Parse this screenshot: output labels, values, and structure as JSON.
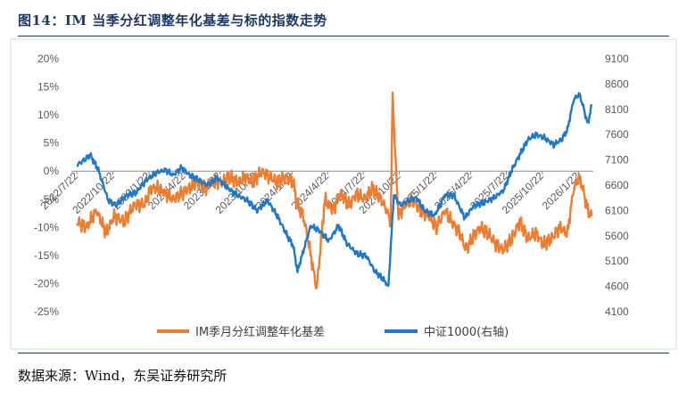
{
  "figure": {
    "title": "图14：IM 当季分红调整年化基差与标的指数走势",
    "source": "数据来源：Wind，东吴证券研究所"
  },
  "chart_data": {
    "type": "line",
    "x_ticks": [
      "2022/7/22",
      "2022/10/22",
      "2023/1/22",
      "2023/4/22",
      "2023/7/22",
      "2023/10/22",
      "2024/1/22",
      "2024/4/22",
      "2024/7/22",
      "2024/10/22",
      "2025/1/22",
      "2025/4/22",
      "2025/7/22",
      "2025/10/22",
      "2026/1/22"
    ],
    "x_tick_labels": [
      "2022/7/22",
      "2022/10/22",
      "2023/1/22",
      "2023/4/22",
      "2023/7/22",
      "2023/10/22",
      "2024/1/22",
      "2024/4/22",
      "2024/7/22",
      "2024/10/22",
      "2025/1/22",
      "2025/4/22",
      "2025/7/22",
      "2025/10/22",
      "2026/1/22"
    ],
    "y_left": {
      "label": "",
      "ticks": [
        "20%",
        "15%",
        "10%",
        "5%",
        "0%",
        "-5%",
        "-10%",
        "-15%",
        "-20%",
        "-25%"
      ],
      "ylim": [
        -25,
        20
      ]
    },
    "y_right": {
      "label": "",
      "ticks": [
        "9100",
        "8600",
        "8100",
        "7600",
        "7100",
        "6600",
        "6100",
        "5600",
        "5100",
        "4600",
        "4100"
      ],
      "ylim": [
        4100,
        9100
      ]
    },
    "grid": false,
    "legend": "bottom",
    "series": [
      {
        "name": "IM季月分红调整年化基差",
        "axis": "left",
        "color": "#ed7d31",
        "x": [
          "2022/7/22",
          "2022/8/15",
          "2022/9/10",
          "2022/10/5",
          "2022/10/25",
          "2022/11/20",
          "2022/12/15",
          "2023/1/10",
          "2023/1/28",
          "2023/2/15",
          "2023/3/5",
          "2023/3/25",
          "2023/4/15",
          "2023/5/5",
          "2023/5/25",
          "2023/6/15",
          "2023/7/5",
          "2023/7/25",
          "2023/8/15",
          "2023/9/5",
          "2023/9/25",
          "2023/10/15",
          "2023/11/5",
          "2023/11/25",
          "2023/12/15",
          "2024/1/5",
          "2024/1/25",
          "2024/2/5",
          "2024/2/20",
          "2024/3/5",
          "2024/3/25",
          "2024/4/15",
          "2024/5/5",
          "2024/5/25",
          "2024/6/15",
          "2024/7/5",
          "2024/7/25",
          "2024/8/15",
          "2024/9/5",
          "2024/9/20",
          "2024/9/30",
          "2024/10/5",
          "2024/10/12",
          "2024/10/20",
          "2024/11/5",
          "2024/11/25",
          "2024/12/15",
          "2025/1/5",
          "2025/1/25",
          "2025/2/15",
          "2025/3/5",
          "2025/3/25",
          "2025/4/10",
          "2025/4/25",
          "2025/5/15",
          "2025/6/5",
          "2025/6/25",
          "2025/7/15",
          "2025/8/5",
          "2025/8/25",
          "2025/9/15",
          "2025/10/5",
          "2025/10/25",
          "2025/11/15",
          "2025/12/5",
          "2025/12/25",
          "2026/1/10",
          "2026/1/25",
          "2026/2/5",
          "2026/2/15",
          "2026/2/25"
        ],
        "values": [
          -9,
          -10,
          -7,
          -11,
          -8,
          -9,
          -6,
          -6,
          -3,
          -3,
          -4,
          -5,
          -4,
          -3,
          -2,
          -3,
          -2,
          -2,
          -1,
          -2,
          -1,
          -2,
          0,
          -1,
          -2,
          -1,
          -2,
          -6,
          -8,
          -13,
          -21,
          -5,
          -7,
          -4,
          -6,
          -4,
          -5,
          -3,
          -5,
          -7,
          -9,
          14,
          2,
          -8,
          -6,
          -5,
          -7,
          -8,
          -10,
          -7,
          -9,
          -11,
          -14,
          -12,
          -10,
          -11,
          -13,
          -14,
          -12,
          -9,
          -12,
          -11,
          -13,
          -12,
          -10,
          -11,
          -3,
          -1,
          -4,
          -7,
          -8
        ]
      },
      {
        "name": "中证1000(右轴)",
        "axis": "right",
        "color": "#1f78c8",
        "x": [
          "2022/7/22",
          "2022/8/10",
          "2022/8/25",
          "2022/9/15",
          "2022/10/10",
          "2022/10/30",
          "2022/11/25",
          "2022/12/20",
          "2023/1/15",
          "2023/2/10",
          "2023/3/5",
          "2023/3/25",
          "2023/4/15",
          "2023/5/5",
          "2023/5/30",
          "2023/6/20",
          "2023/7/15",
          "2023/8/10",
          "2023/9/5",
          "2023/9/30",
          "2023/10/25",
          "2023/11/20",
          "2023/12/15",
          "2024/1/10",
          "2024/1/25",
          "2024/2/5",
          "2024/2/20",
          "2024/3/10",
          "2024/4/1",
          "2024/4/25",
          "2024/5/20",
          "2024/6/10",
          "2024/7/5",
          "2024/7/30",
          "2024/8/20",
          "2024/9/10",
          "2024/9/24",
          "2024/10/8",
          "2024/10/25",
          "2024/11/15",
          "2024/12/5",
          "2024/12/25",
          "2025/1/20",
          "2025/2/15",
          "2025/3/10",
          "2025/4/7",
          "2025/4/30",
          "2025/5/25",
          "2025/6/20",
          "2025/7/15",
          "2025/8/5",
          "2025/8/25",
          "2025/9/15",
          "2025/10/5",
          "2025/10/25",
          "2025/11/20",
          "2025/12/10",
          "2025/12/25",
          "2026/1/10",
          "2026/1/25",
          "2026/2/5",
          "2026/2/15",
          "2026/2/25"
        ],
        "values": [
          7000,
          7100,
          7200,
          6900,
          6300,
          6200,
          6400,
          6450,
          6700,
          6850,
          6900,
          6800,
          6950,
          6800,
          6700,
          6600,
          6750,
          6550,
          6400,
          6300,
          6100,
          6300,
          6000,
          5600,
          5400,
          4900,
          5300,
          5800,
          5700,
          5500,
          5800,
          5450,
          5250,
          5200,
          4900,
          4750,
          4600,
          6400,
          6200,
          6300,
          6350,
          6100,
          6000,
          6400,
          6400,
          5950,
          6200,
          6250,
          6350,
          6500,
          6900,
          7200,
          7500,
          7600,
          7550,
          7400,
          7500,
          7700,
          8300,
          8400,
          8100,
          7800,
          8200
        ]
      }
    ]
  }
}
